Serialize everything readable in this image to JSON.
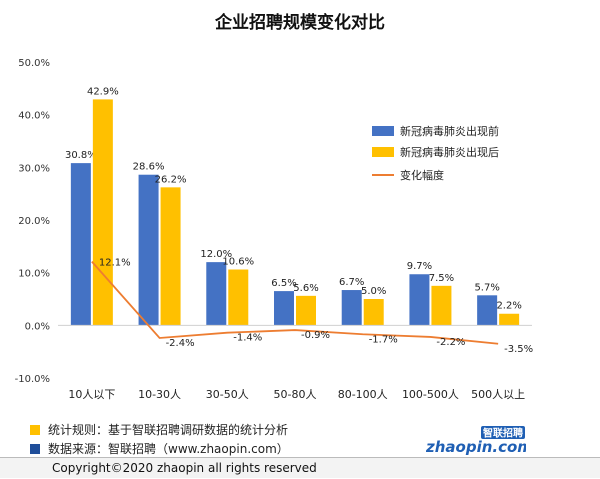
{
  "chart_data": {
    "type": "bar",
    "title": "企业招聘规模变化对比",
    "categories": [
      "10人以下",
      "10-30人",
      "30-50人",
      "50-80人",
      "80-100人",
      "100-500人",
      "500人以上"
    ],
    "series": [
      {
        "name": "新冠病毒肺炎出现前",
        "type": "bar",
        "color": "#4472C4",
        "values": [
          30.8,
          28.6,
          12.0,
          6.5,
          6.7,
          9.7,
          5.7
        ],
        "labels": [
          "30.8%",
          "28.6%",
          "12.0%",
          "6.5%",
          "6.7%",
          "9.7%",
          "5.7%"
        ]
      },
      {
        "name": "新冠病毒肺炎出现后",
        "type": "bar",
        "color": "#FFC000",
        "values": [
          42.9,
          26.2,
          10.6,
          5.6,
          5.0,
          7.5,
          2.2
        ],
        "labels": [
          "42.9%",
          "26.2%",
          "10.6%",
          "5.6%",
          "5.0%",
          "7.5%",
          "2.2%"
        ]
      },
      {
        "name": "变化幅度",
        "type": "line",
        "color": "#ED7D31",
        "values": [
          12.1,
          -2.4,
          -1.4,
          -0.9,
          -1.7,
          -2.2,
          -3.5
        ],
        "labels": [
          "12.1%",
          "-2.4%",
          "-1.4%",
          "-0.9%",
          "-1.7%",
          "-2.2%",
          "-3.5%"
        ]
      }
    ],
    "yaxis": {
      "min": -10,
      "max": 50,
      "ticks": [
        -10,
        0,
        10,
        20,
        30,
        40,
        50
      ],
      "tick_labels": [
        "-10.0%",
        "0.0%",
        "10.0%",
        "20.0%",
        "30.0%",
        "40.0%",
        "50.0%"
      ]
    },
    "grid": false,
    "legend": "right"
  },
  "notes": [
    {
      "text": "统计规则：基于智联招聘调研数据的统计分析",
      "color": "#FFC000"
    },
    {
      "text": "数据来源：智联招聘（www.zhaopin.com）",
      "color": "#1F4E9A"
    }
  ],
  "logo": {
    "text": "zhaopin.com",
    "cn_text": "智联招聘"
  },
  "copyright": "Copyright©2020 zhaopin all rights reserved"
}
